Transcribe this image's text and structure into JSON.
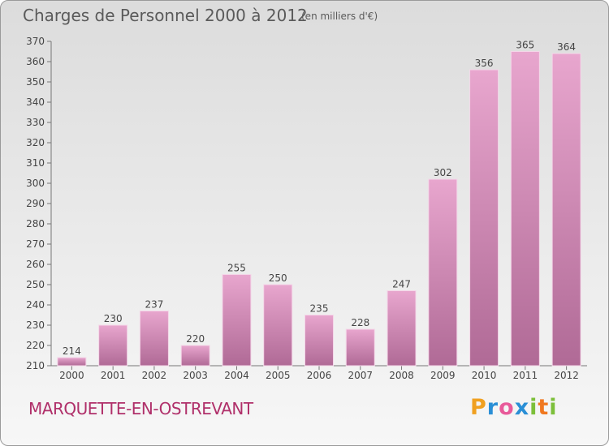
{
  "header": {
    "title": "Charges de Personnel 2000 à 2012",
    "subtitle": "(en milliers d'€)"
  },
  "footer": {
    "commune": "MARQUETTE-EN-OSTREVANT",
    "logo": "Proxiti"
  },
  "colors": {
    "bar_top": "#e8a6ce",
    "bar_bottom": "#b06a96",
    "commune_text": "#b0306a"
  },
  "chart_data": {
    "type": "bar",
    "categories": [
      "2000",
      "2001",
      "2002",
      "2003",
      "2004",
      "2005",
      "2006",
      "2007",
      "2008",
      "2009",
      "2010",
      "2011",
      "2012"
    ],
    "values": [
      214,
      230,
      237,
      220,
      255,
      250,
      235,
      228,
      247,
      302,
      356,
      365,
      364
    ],
    "title": "Charges de Personnel 2000 à 2012",
    "subtitle": "(en milliers d'€)",
    "ylim": [
      210,
      370
    ],
    "yticks": [
      210,
      220,
      230,
      240,
      250,
      260,
      270,
      280,
      290,
      300,
      310,
      320,
      330,
      340,
      350,
      360,
      370
    ],
    "grid": false,
    "data_labels": true
  }
}
